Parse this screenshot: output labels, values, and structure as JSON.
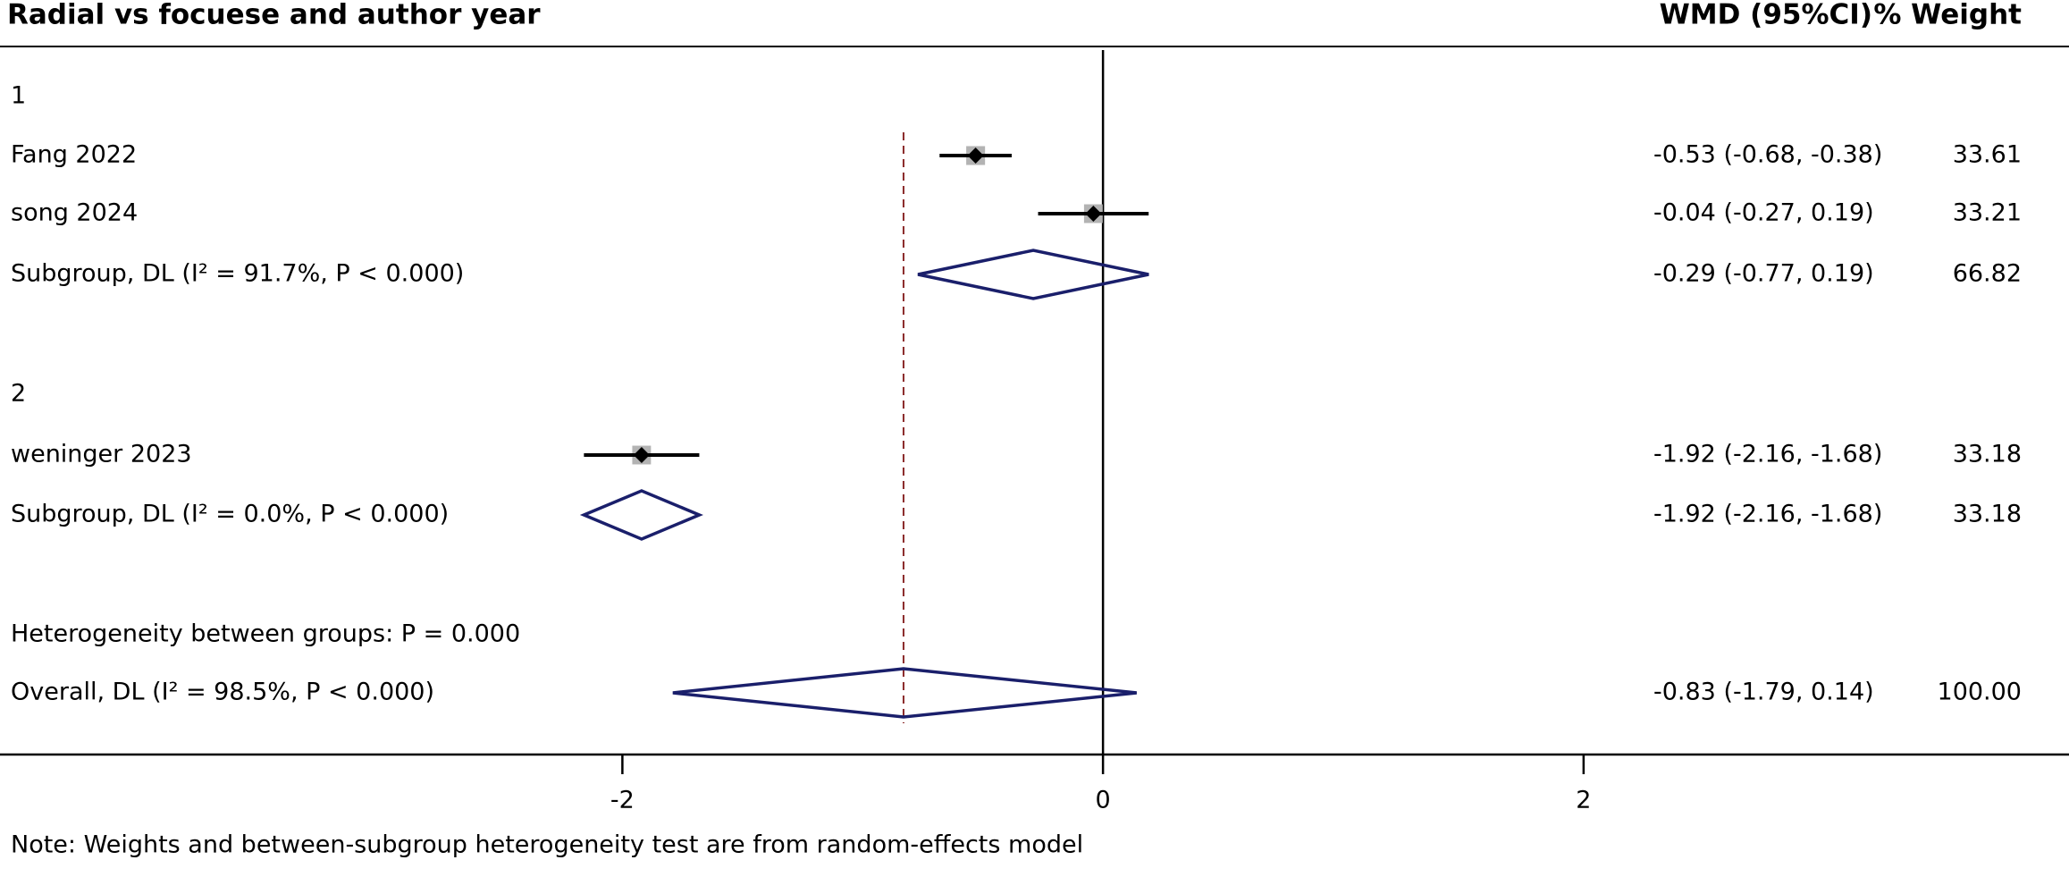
{
  "chart_data": {
    "type": "forest",
    "title": "Radial vs focuese and author year",
    "ci_header": "WMD (95%CI)",
    "weight_header": "% Weight",
    "xlim": [
      -4.59,
      4.02
    ],
    "xticks": [
      -2,
      0,
      2
    ],
    "null_line": 0,
    "rows": [
      {
        "kind": "group",
        "label": "1"
      },
      {
        "kind": "study",
        "label": "Fang 2022",
        "estimate": -0.53,
        "lower": -0.68,
        "upper": -0.38,
        "ci_label": "-0.53 (-0.68, -0.38)",
        "weight": 33.61
      },
      {
        "kind": "study",
        "label": "song 2024",
        "estimate": -0.04,
        "lower": -0.27,
        "upper": 0.19,
        "ci_label": "-0.04 (-0.27, 0.19)",
        "weight": 33.21
      },
      {
        "kind": "subgroup",
        "label": "Subgroup, DL (I² = 91.7%, P < 0.000)",
        "estimate": -0.29,
        "lower": -0.77,
        "upper": 0.19,
        "ci_label": "-0.29 (-0.77, 0.19)",
        "weight": 66.82
      },
      {
        "kind": "group",
        "label": "2"
      },
      {
        "kind": "study",
        "label": "weninger 2023",
        "estimate": -1.92,
        "lower": -2.16,
        "upper": -1.68,
        "ci_label": "-1.92 (-2.16, -1.68)",
        "weight": 33.18
      },
      {
        "kind": "subgroup",
        "label": "Subgroup, DL (I² = 0.0%, P < 0.000)",
        "estimate": -1.92,
        "lower": -2.16,
        "upper": -1.68,
        "ci_label": "-1.92 (-2.16, -1.68)",
        "weight": 33.18
      },
      {
        "kind": "text",
        "label": "Heterogeneity between groups: P = 0.000"
      },
      {
        "kind": "overall",
        "label": "Overall, DL (I² = 98.5%, P < 0.000)",
        "estimate": -0.83,
        "lower": -1.79,
        "upper": 0.14,
        "ci_label": "-0.83 (-1.79, 0.14)",
        "weight": 100,
        "weight_label": "100.00"
      }
    ],
    "note": "Note: Weights and between-subgroup heterogeneity test are from random-effects model"
  }
}
